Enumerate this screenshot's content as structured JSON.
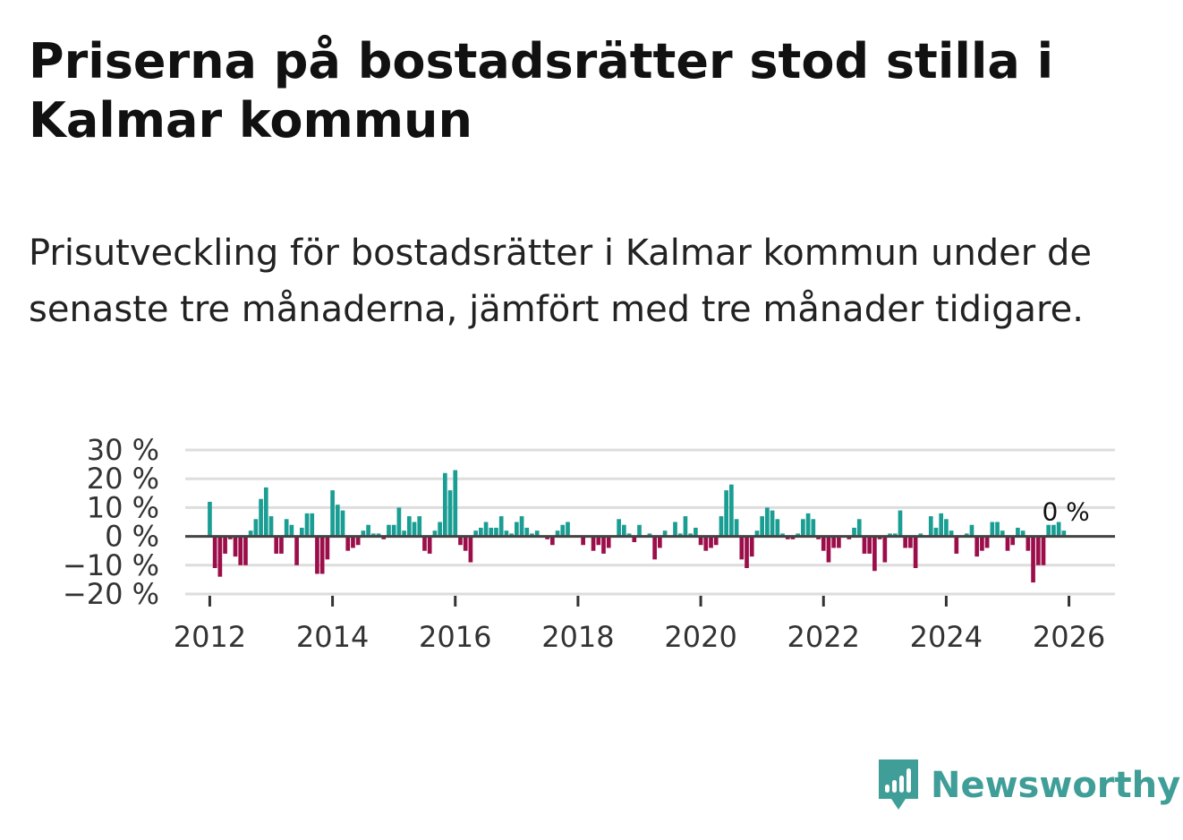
{
  "title": "Priserna på bostadsrätter stod stilla i Kalmar kommun",
  "subtitle": "Prisutveckling för bostadsrätter i Kalmar kommun under de senaste tre månaderna, jämfört med tre månader tidigare.",
  "brand": {
    "name": "Newsworthy",
    "icon": "newsworthy-logo-icon"
  },
  "colors": {
    "positive": "#1a9e94",
    "negative": "#9b0e4a",
    "grid": "#dddddd",
    "zero_line": "#444444",
    "text": "#333333"
  },
  "chart_data": {
    "type": "bar",
    "title": "Priserna på bostadsrätter stod stilla i Kalmar kommun",
    "xlabel": "",
    "ylabel": "",
    "ylim": [
      -20,
      30
    ],
    "xlim": [
      2011.6,
      2026.75
    ],
    "yticks": [
      30,
      20,
      10,
      0,
      -10,
      -20
    ],
    "ytick_labels": [
      "30 %",
      "20 %",
      "10 %",
      "0 %",
      "−10 %",
      "−20 %"
    ],
    "xticks": [
      2012,
      2014,
      2016,
      2018,
      2020,
      2022,
      2024,
      2026
    ],
    "xtick_labels": [
      "2012",
      "2014",
      "2016",
      "2018",
      "2020",
      "2022",
      "2024",
      "2026"
    ],
    "grid": true,
    "annotation": {
      "text": "0 %",
      "x": 2025.95,
      "y": 0
    },
    "series": [
      {
        "name": "Prisutveckling",
        "start": {
          "year": 2012,
          "month": 1
        },
        "values": [
          12,
          -11,
          -14,
          -6,
          -1,
          -7,
          -10,
          -10,
          2,
          6,
          13,
          17,
          7,
          -6,
          -6,
          6,
          4,
          -10,
          3,
          8,
          8,
          -13,
          -13,
          -8,
          16,
          11,
          9,
          -5,
          -4,
          -3,
          2,
          4,
          1,
          1,
          -1,
          4,
          4,
          10,
          2,
          7,
          5,
          7,
          -5,
          -6,
          2,
          5,
          22,
          16,
          23,
          -3,
          -5,
          -9,
          2,
          3,
          5,
          3,
          3,
          7,
          2,
          1,
          5,
          7,
          3,
          1,
          2,
          0,
          -1,
          -3,
          2,
          4,
          5,
          0,
          0,
          -3,
          0,
          -5,
          -3,
          -6,
          -4,
          0,
          6,
          4,
          1,
          -2,
          4,
          0,
          1,
          -8,
          -4,
          2,
          0,
          5,
          1,
          7,
          1,
          3,
          -3,
          -5,
          -4,
          -3,
          7,
          16,
          18,
          6,
          -8,
          -11,
          -7,
          2,
          7,
          10,
          9,
          6,
          1,
          -1,
          -1,
          1,
          6,
          8,
          6,
          -1,
          -5,
          -9,
          -4,
          -4,
          0,
          -1,
          3,
          6,
          -6,
          -6,
          -12,
          -1,
          -9,
          1,
          1,
          9,
          -4,
          -4,
          -11,
          1,
          0,
          7,
          3,
          8,
          6,
          2,
          -6,
          0,
          1,
          4,
          -7,
          -5,
          -4,
          5,
          5,
          2,
          -5,
          -3,
          3,
          2,
          -5,
          -16,
          -10,
          -10,
          4,
          4,
          5,
          2,
          0
        ]
      }
    ]
  }
}
